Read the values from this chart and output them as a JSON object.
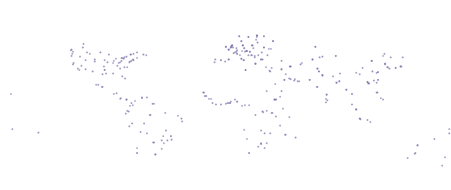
{
  "figsize": [
    6.4,
    2.7
  ],
  "dpi": 100,
  "background_color": "#ffffff",
  "land_color": "#ecdec4",
  "ocean_color": "#ffffff",
  "border_color": "#333333",
  "border_linewidth": 0.3,
  "coastline_linewidth": 0.5,
  "dot_color": "#7b6faa",
  "dot_size": 3,
  "dot_alpha": 0.85,
  "dot_marker": "o",
  "xlim": [
    -180,
    180
  ],
  "ylim": [
    -60,
    85
  ],
  "points": [
    [
      -122.3,
      47.6
    ],
    [
      -118.2,
      34.1
    ],
    [
      -87.6,
      41.9
    ],
    [
      -73.9,
      40.7
    ],
    [
      -71.1,
      42.4
    ],
    [
      -77.0,
      38.9
    ],
    [
      -80.2,
      25.8
    ],
    [
      -90.1,
      29.9
    ],
    [
      -95.4,
      29.8
    ],
    [
      -104.9,
      39.7
    ],
    [
      -112.1,
      33.5
    ],
    [
      -115.1,
      36.2
    ],
    [
      -117.2,
      32.7
    ],
    [
      -122.0,
      37.3
    ],
    [
      -121.5,
      38.6
    ],
    [
      -123.1,
      49.2
    ],
    [
      -79.4,
      43.7
    ],
    [
      -73.6,
      45.5
    ],
    [
      -63.6,
      44.6
    ],
    [
      -114.1,
      51.0
    ],
    [
      -75.7,
      45.4
    ],
    [
      -70.7,
      46.8
    ],
    [
      -81.2,
      43.0
    ],
    [
      -83.1,
      42.3
    ],
    [
      -93.1,
      44.9
    ],
    [
      -97.0,
      32.8
    ],
    [
      -96.8,
      33.0
    ],
    [
      -98.5,
      29.4
    ],
    [
      -106.5,
      31.8
    ],
    [
      -84.4,
      33.7
    ],
    [
      -86.8,
      36.2
    ],
    [
      -85.7,
      38.3
    ],
    [
      -84.5,
      39.1
    ],
    [
      -83.0,
      40.0
    ],
    [
      -81.7,
      41.5
    ],
    [
      -74.0,
      41.0
    ],
    [
      -75.2,
      39.9
    ],
    [
      -76.6,
      39.3
    ],
    [
      -79.0,
      35.2
    ],
    [
      -80.8,
      35.2
    ],
    [
      -82.5,
      27.9
    ],
    [
      -90.2,
      38.6
    ],
    [
      -111.9,
      40.8
    ],
    [
      -97.4,
      35.5
    ],
    [
      -94.6,
      39.1
    ],
    [
      -89.6,
      39.8
    ],
    [
      -82.9,
      42.4
    ],
    [
      -123.0,
      44.0
    ],
    [
      -122.7,
      45.5
    ],
    [
      -96.7,
      40.8
    ],
    [
      -104.8,
      41.1
    ],
    [
      -100.4,
      46.8
    ],
    [
      -108.5,
      45.8
    ],
    [
      -111.0,
      46.9
    ],
    [
      -116.2,
      43.6
    ],
    [
      -113.5,
      53.5
    ],
    [
      -75.7,
      45.4
    ],
    [
      -66.0,
      45.0
    ],
    [
      -123.5,
      48.4
    ],
    [
      -99.1,
      19.4
    ],
    [
      -103.4,
      20.7
    ],
    [
      -101.7,
      21.2
    ],
    [
      -98.2,
      19.0
    ],
    [
      -89.2,
      13.7
    ],
    [
      -87.2,
      14.1
    ],
    [
      -83.7,
      10.0
    ],
    [
      -84.1,
      9.9
    ],
    [
      -74.1,
      4.7
    ],
    [
      -75.5,
      6.2
    ],
    [
      -76.5,
      3.9
    ],
    [
      -72.5,
      7.9
    ],
    [
      -67.0,
      10.5
    ],
    [
      -66.9,
      10.6
    ],
    [
      -63.2,
      10.6
    ],
    [
      -79.5,
      9.0
    ],
    [
      -79.5,
      8.9
    ],
    [
      -58.4,
      5.8
    ],
    [
      -57.5,
      5.8
    ],
    [
      -48.5,
      -1.5
    ],
    [
      -43.2,
      -22.9
    ],
    [
      -46.6,
      -23.5
    ],
    [
      -51.2,
      -30.0
    ],
    [
      -38.5,
      -3.7
    ],
    [
      -35.2,
      -5.8
    ],
    [
      -34.9,
      -8.1
    ],
    [
      -63.2,
      -17.8
    ],
    [
      -68.1,
      -16.5
    ],
    [
      -70.7,
      -33.5
    ],
    [
      -70.6,
      -33.4
    ],
    [
      -71.0,
      -29.9
    ],
    [
      -57.6,
      -25.3
    ],
    [
      -58.2,
      -25.3
    ],
    [
      -56.2,
      -34.9
    ],
    [
      -56.1,
      -34.9
    ],
    [
      -77.0,
      -12.1
    ],
    [
      -75.0,
      -9.9
    ],
    [
      -77.5,
      -0.2
    ],
    [
      -79.9,
      -2.2
    ],
    [
      -78.5,
      0.3
    ],
    [
      -60.7,
      -3.1
    ],
    [
      -60.0,
      -3.1
    ],
    [
      -65.2,
      -10.0
    ],
    [
      -47.9,
      -15.8
    ],
    [
      -44.0,
      -19.9
    ],
    [
      -43.9,
      -19.9
    ],
    [
      -49.3,
      -25.5
    ],
    [
      -51.2,
      -23.3
    ],
    [
      -50.0,
      -20.0
    ],
    [
      2.3,
      48.9
    ],
    [
      2.4,
      48.8
    ],
    [
      2.2,
      48.9
    ],
    [
      -0.1,
      51.5
    ],
    [
      0.0,
      51.5
    ],
    [
      -0.1,
      51.4
    ],
    [
      13.4,
      52.5
    ],
    [
      13.5,
      52.5
    ],
    [
      13.3,
      52.5
    ],
    [
      4.9,
      52.4
    ],
    [
      4.8,
      52.4
    ],
    [
      4.9,
      52.3
    ],
    [
      3.7,
      51.0
    ],
    [
      3.8,
      51.0
    ],
    [
      18.1,
      59.3
    ],
    [
      18.0,
      59.3
    ],
    [
      24.9,
      60.2
    ],
    [
      25.0,
      60.2
    ],
    [
      12.5,
      55.7
    ],
    [
      12.6,
      55.7
    ],
    [
      10.7,
      59.9
    ],
    [
      10.8,
      59.9
    ],
    [
      -9.1,
      38.7
    ],
    [
      -8.6,
      41.2
    ],
    [
      2.2,
      41.4
    ],
    [
      2.1,
      41.4
    ],
    [
      -3.7,
      40.4
    ],
    [
      -3.8,
      40.4
    ],
    [
      -0.4,
      39.5
    ],
    [
      12.5,
      41.9
    ],
    [
      12.4,
      41.9
    ],
    [
      14.5,
      40.8
    ],
    [
      14.3,
      40.9
    ],
    [
      11.3,
      44.5
    ],
    [
      9.2,
      45.5
    ],
    [
      9.1,
      45.5
    ],
    [
      28.0,
      41.0
    ],
    [
      29.0,
      41.0
    ],
    [
      27.9,
      41.0
    ],
    [
      23.7,
      37.9
    ],
    [
      23.6,
      37.9
    ],
    [
      26.1,
      44.4
    ],
    [
      19.0,
      47.5
    ],
    [
      19.1,
      47.5
    ],
    [
      17.1,
      48.1
    ],
    [
      16.4,
      48.2
    ],
    [
      14.4,
      50.1
    ],
    [
      14.5,
      50.1
    ],
    [
      21.0,
      52.2
    ],
    [
      21.1,
      52.2
    ],
    [
      30.5,
      50.5
    ],
    [
      30.6,
      50.5
    ],
    [
      44.4,
      40.2
    ],
    [
      37.6,
      55.8
    ],
    [
      37.7,
      55.8
    ],
    [
      37.5,
      55.8
    ],
    [
      36.2,
      49.9
    ],
    [
      30.3,
      59.9
    ],
    [
      30.2,
      59.9
    ],
    [
      23.7,
      37.9
    ],
    [
      24.1,
      56.9
    ],
    [
      25.3,
      54.7
    ],
    [
      24.7,
      59.4
    ],
    [
      25.0,
      60.2
    ],
    [
      4.4,
      51.9
    ],
    [
      4.5,
      51.9
    ],
    [
      5.6,
      50.6
    ],
    [
      6.1,
      46.2
    ],
    [
      7.4,
      46.9
    ],
    [
      8.5,
      47.4
    ],
    [
      9.0,
      48.5
    ],
    [
      8.7,
      50.1
    ],
    [
      13.1,
      47.8
    ],
    [
      15.4,
      47.1
    ],
    [
      16.4,
      48.2
    ],
    [
      17.1,
      48.1
    ],
    [
      21.0,
      52.2
    ],
    [
      22.0,
      50.1
    ],
    [
      18.0,
      44.8
    ],
    [
      20.5,
      44.8
    ],
    [
      20.6,
      44.8
    ],
    [
      22.8,
      43.8
    ],
    [
      23.3,
      42.7
    ],
    [
      28.8,
      47.0
    ],
    [
      33.4,
      44.6
    ],
    [
      34.1,
      49.6
    ],
    [
      32.1,
      34.8
    ],
    [
      34.8,
      32.1
    ],
    [
      35.2,
      31.8
    ],
    [
      36.8,
      34.6
    ],
    [
      44.4,
      33.3
    ],
    [
      44.3,
      33.3
    ],
    [
      46.7,
      24.7
    ],
    [
      46.8,
      24.8
    ],
    [
      39.2,
      21.5
    ],
    [
      57.5,
      23.6
    ],
    [
      58.6,
      23.6
    ],
    [
      55.3,
      25.3
    ],
    [
      54.4,
      24.5
    ],
    [
      51.5,
      25.3
    ],
    [
      50.6,
      26.2
    ],
    [
      48.0,
      29.4
    ],
    [
      51.4,
      35.7
    ],
    [
      51.3,
      35.7
    ],
    [
      51.5,
      35.8
    ],
    [
      59.6,
      37.2
    ],
    [
      60.6,
      38.4
    ],
    [
      69.3,
      41.3
    ],
    [
      69.4,
      41.3
    ],
    [
      71.5,
      51.2
    ],
    [
      71.4,
      51.2
    ],
    [
      74.6,
      42.9
    ],
    [
      76.9,
      43.3
    ],
    [
      73.0,
      33.7
    ],
    [
      72.9,
      33.7
    ],
    [
      67.0,
      24.9
    ],
    [
      67.1,
      24.9
    ],
    [
      74.3,
      31.5
    ],
    [
      74.4,
      31.6
    ],
    [
      77.2,
      28.6
    ],
    [
      77.1,
      28.6
    ],
    [
      77.3,
      28.5
    ],
    [
      72.9,
      19.1
    ],
    [
      72.8,
      19.1
    ],
    [
      80.3,
      13.1
    ],
    [
      80.2,
      13.1
    ],
    [
      88.4,
      22.6
    ],
    [
      88.3,
      22.6
    ],
    [
      90.4,
      23.7
    ],
    [
      90.5,
      23.7
    ],
    [
      85.3,
      27.7
    ],
    [
      80.0,
      9.7
    ],
    [
      81.2,
      8.3
    ],
    [
      79.9,
      6.9
    ],
    [
      96.1,
      16.8
    ],
    [
      96.2,
      16.9
    ],
    [
      100.5,
      13.8
    ],
    [
      100.6,
      13.8
    ],
    [
      100.5,
      5.4
    ],
    [
      103.8,
      1.3
    ],
    [
      103.9,
      1.3
    ],
    [
      104.0,
      1.4
    ],
    [
      106.8,
      -6.2
    ],
    [
      106.9,
      -6.2
    ],
    [
      107.6,
      -6.9
    ],
    [
      112.8,
      -7.3
    ],
    [
      115.2,
      -8.7
    ],
    [
      121.0,
      14.6
    ],
    [
      120.5,
      15.0
    ],
    [
      123.9,
      10.3
    ],
    [
      125.6,
      9.3
    ],
    [
      114.2,
      22.3
    ],
    [
      114.1,
      22.3
    ],
    [
      113.5,
      22.2
    ],
    [
      121.5,
      25.0
    ],
    [
      121.6,
      25.0
    ],
    [
      120.3,
      22.6
    ],
    [
      116.4,
      39.9
    ],
    [
      116.5,
      39.9
    ],
    [
      116.3,
      39.9
    ],
    [
      121.5,
      31.2
    ],
    [
      121.4,
      31.2
    ],
    [
      113.3,
      23.1
    ],
    [
      113.2,
      23.1
    ],
    [
      104.1,
      30.7
    ],
    [
      108.9,
      34.3
    ],
    [
      106.6,
      29.6
    ],
    [
      117.2,
      31.9
    ],
    [
      120.2,
      30.3
    ],
    [
      118.1,
      24.5
    ],
    [
      87.6,
      43.8
    ],
    [
      87.7,
      43.8
    ],
    [
      91.1,
      29.7
    ],
    [
      126.6,
      45.8
    ],
    [
      125.3,
      43.9
    ],
    [
      129.0,
      35.2
    ],
    [
      129.1,
      35.1
    ],
    [
      127.0,
      37.6
    ],
    [
      127.1,
      37.6
    ],
    [
      126.9,
      37.5
    ],
    [
      139.7,
      35.7
    ],
    [
      139.8,
      35.7
    ],
    [
      139.6,
      35.7
    ],
    [
      135.5,
      34.7
    ],
    [
      135.6,
      34.7
    ],
    [
      130.4,
      33.6
    ],
    [
      141.4,
      43.1
    ],
    [
      131.6,
      43.1
    ],
    [
      153.0,
      -27.5
    ],
    [
      151.2,
      -33.9
    ],
    [
      144.9,
      -37.8
    ],
    [
      150.9,
      -34.0
    ],
    [
      153.1,
      -27.5
    ],
    [
      172.6,
      -43.5
    ],
    [
      174.8,
      -36.9
    ],
    [
      36.8,
      -1.3
    ],
    [
      36.9,
      -1.3
    ],
    [
      39.7,
      -4.1
    ],
    [
      32.6,
      0.3
    ],
    [
      3.4,
      6.5
    ],
    [
      3.5,
      6.5
    ],
    [
      2.1,
      6.4
    ],
    [
      13.2,
      3.9
    ],
    [
      15.3,
      4.4
    ],
    [
      18.6,
      4.4
    ],
    [
      14.5,
      -14.9
    ],
    [
      28.3,
      -15.4
    ],
    [
      31.1,
      -17.8
    ],
    [
      32.5,
      -25.9
    ],
    [
      31.0,
      -29.9
    ],
    [
      18.4,
      -33.9
    ],
    [
      18.5,
      -33.9
    ],
    [
      28.0,
      -26.2
    ],
    [
      28.1,
      -26.2
    ],
    [
      27.9,
      -25.7
    ],
    [
      25.7,
      -28.4
    ],
    [
      17.1,
      -22.6
    ],
    [
      40.2,
      9.0
    ],
    [
      40.1,
      9.0
    ],
    [
      38.7,
      9.0
    ],
    [
      38.8,
      9.0
    ],
    [
      45.3,
      2.0
    ],
    [
      43.1,
      11.6
    ],
    [
      44.2,
      15.6
    ],
    [
      15.6,
      32.5
    ],
    [
      15.7,
      32.6
    ],
    [
      32.5,
      15.6
    ],
    [
      9.0,
      7.5
    ],
    [
      9.1,
      7.5
    ],
    [
      7.5,
      9.1
    ],
    [
      3.9,
      7.4
    ],
    [
      1.2,
      6.2
    ],
    [
      -0.2,
      5.6
    ],
    [
      -16.7,
      11.8
    ],
    [
      -13.7,
      9.5
    ],
    [
      -10.8,
      6.3
    ],
    [
      -8.0,
      5.4
    ],
    [
      -4.0,
      5.4
    ],
    [
      29.4,
      -0.3
    ],
    [
      30.0,
      -1.0
    ],
    [
      23.6,
      -3.4
    ],
    [
      35.7,
      -17.9
    ],
    [
      47.5,
      -18.9
    ],
    [
      47.6,
      -18.9
    ],
    [
      43.3,
      -11.7
    ],
    [
      55.5,
      -21.1
    ],
    [
      -170.7,
      -14.3
    ],
    [
      178.4,
      -18.1
    ],
    [
      166.5,
      -22.3
    ],
    [
      -171.8,
      13.8
    ],
    [
      178.1,
      -14.3
    ],
    [
      -149.9,
      -17.5
    ],
    [
      -17.9,
      14.7
    ],
    [
      -17.4,
      14.7
    ],
    [
      -16.0,
      11.9
    ],
    [
      -15.6,
      11.9
    ],
    [
      -11.9,
      9.5
    ],
    [
      50.7,
      -4.7
    ]
  ]
}
